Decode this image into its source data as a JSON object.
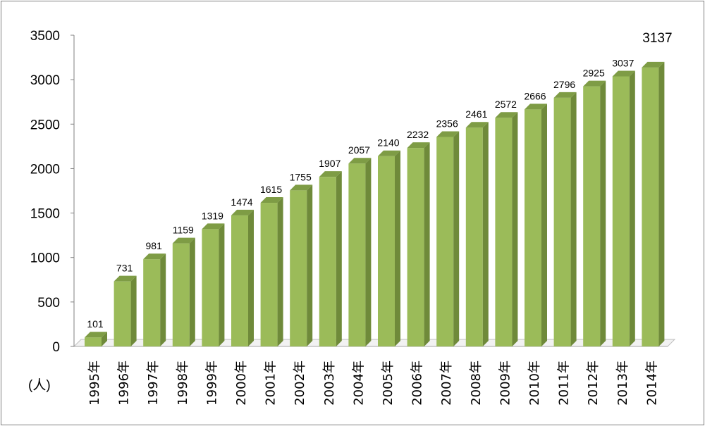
{
  "chart_data": {
    "type": "bar",
    "unit": "(人)",
    "categories": [
      "1995年",
      "1996年",
      "1997年",
      "1998年",
      "1999年",
      "2000年",
      "2001年",
      "2002年",
      "2003年",
      "2004年",
      "2005年",
      "2006年",
      "2007年",
      "2008年",
      "2009年",
      "2010年",
      "2011年",
      "2012年",
      "2013年",
      "2014年"
    ],
    "values": [
      101,
      731,
      981,
      1159,
      1319,
      1474,
      1615,
      1755,
      1907,
      2057,
      2140,
      2232,
      2356,
      2461,
      2572,
      2666,
      2796,
      2925,
      3037,
      3137
    ],
    "ylim": [
      0,
      3500
    ],
    "yticks": [
      "0",
      "500",
      "1000",
      "1500",
      "2000",
      "2500",
      "3000",
      "3500"
    ],
    "grid": false,
    "legend": "none",
    "colors": {
      "bar_front": "#9bbb59",
      "bar_side": "#6f8a3a",
      "bar_top": "#7e9c45",
      "floor": "#d9d9d9"
    }
  }
}
